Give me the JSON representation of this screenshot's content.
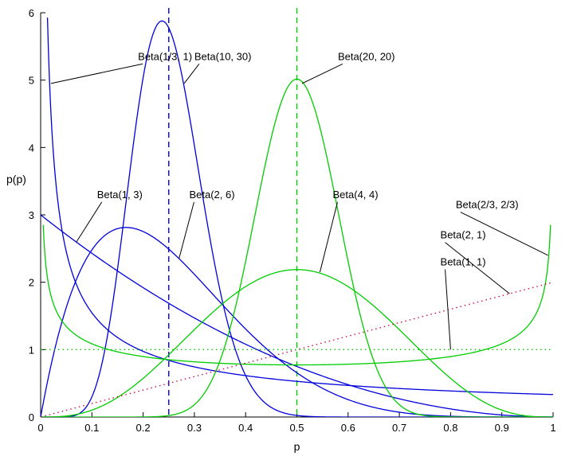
{
  "chart_data": {
    "type": "line",
    "xlabel": "p",
    "ylabel": "p(p)",
    "xlim": [
      0,
      1
    ],
    "ylim": [
      0,
      6
    ],
    "xticks": [
      "0",
      "0.1",
      "0.2",
      "0.3",
      "0.4",
      "0.5",
      "0.6",
      "0.7",
      "0.8",
      "0.9",
      "1"
    ],
    "yticks": [
      "0",
      "1",
      "2",
      "3",
      "4",
      "5",
      "6"
    ],
    "grid": false,
    "colors": {
      "blue": "#0000dd",
      "green": "#00cc00",
      "red": "#cc0033"
    },
    "series": [
      {
        "name": "Beta(1/3, 1)",
        "alpha": 0.3333,
        "beta": 1,
        "color": "blue",
        "style": "solid",
        "label_at": [
          0.19,
          5.3
        ],
        "leader_to": [
          0.02,
          4.95
        ]
      },
      {
        "name": "Beta(10, 30)",
        "alpha": 10,
        "beta": 30,
        "color": "blue",
        "style": "solid",
        "label_at": [
          0.3,
          5.3
        ],
        "leader_to": [
          0.28,
          4.95
        ]
      },
      {
        "name": "Beta(1, 3)",
        "alpha": 1,
        "beta": 3,
        "color": "blue",
        "style": "solid",
        "label_at": [
          0.11,
          3.25
        ],
        "leader_to": [
          0.07,
          2.6
        ]
      },
      {
        "name": "Beta(2, 6)",
        "alpha": 2,
        "beta": 6,
        "color": "blue",
        "style": "solid",
        "label_at": [
          0.29,
          3.25
        ],
        "leader_to": [
          0.27,
          2.35
        ]
      },
      {
        "name": "Beta(20, 20)",
        "alpha": 20,
        "beta": 20,
        "color": "green",
        "style": "solid",
        "label_at": [
          0.58,
          5.3
        ],
        "leader_to": [
          0.51,
          4.95
        ]
      },
      {
        "name": "Beta(4, 4)",
        "alpha": 4,
        "beta": 4,
        "color": "green",
        "style": "solid",
        "label_at": [
          0.57,
          3.25
        ],
        "leader_to": [
          0.545,
          2.15
        ]
      },
      {
        "name": "Beta(2/3, 2/3)",
        "alpha": 0.6667,
        "beta": 0.6667,
        "color": "green",
        "style": "solid",
        "label_at": [
          0.81,
          3.1
        ],
        "leader_to": [
          0.99,
          2.4
        ]
      },
      {
        "name": "Beta(2, 1)",
        "alpha": 2,
        "beta": 1,
        "color": "red",
        "style": "dotted",
        "label_at": [
          0.78,
          2.65
        ],
        "leader_to": [
          0.915,
          1.83
        ]
      },
      {
        "name": "Beta(1, 1)",
        "alpha": 1,
        "beta": 1,
        "color": "green",
        "style": "dotted",
        "label_at": [
          0.78,
          2.25
        ],
        "leader_to": [
          0.8,
          1.0
        ]
      }
    ],
    "vertical_lines": [
      {
        "x": 0.25,
        "color": "blue",
        "style": "dashed"
      },
      {
        "x": 0.5,
        "color": "green",
        "style": "dashed"
      }
    ]
  }
}
